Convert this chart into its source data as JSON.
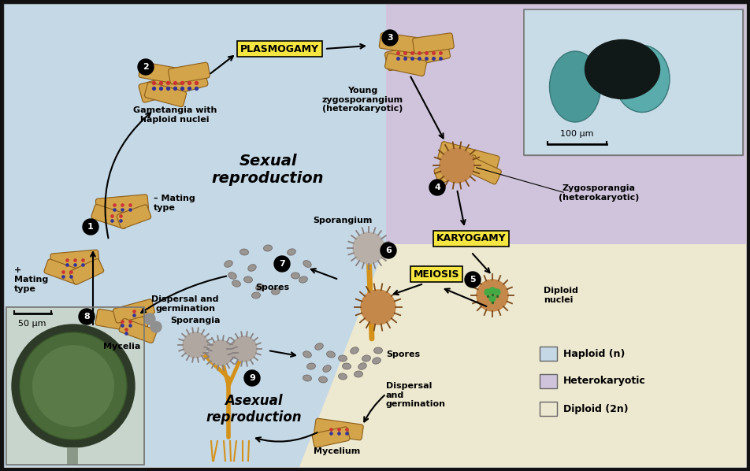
{
  "bg_haploid": "#c5d8e5",
  "bg_heterokaryotic": "#cfc4dc",
  "bg_diploid": "#ede8d0",
  "border_color": "#222222",
  "highlight_yellow": "#f5e642",
  "figsize": [
    9.52,
    5.98
  ],
  "dpi": 100,
  "labels": {
    "plasmogamy": "PLASMOGAMY",
    "karyogamy": "KARYOGAMY",
    "meiosis": "MEIOSIS",
    "sexual_reproduction": "Sexual\nreproduction",
    "asexual_reproduction": "Asexual\nreproduction",
    "gametangia": "Gametangia with\nhaploid nuclei",
    "young_zygo": "Young\nzygosporangium\n(heterokaryotic)",
    "zygosporangia": "Zygosporangia\n(heterokaryotic)",
    "diploid_nuclei": "Diploid\nnuclei",
    "sporangium": "Sporangium",
    "spores1": "Spores",
    "spores2": "Spores",
    "dispersal1": "Dispersal and\ngermination",
    "dispersal2": "Dispersal\nand\ngermination",
    "sporangia": "Sporangia",
    "mycelia": "Mycelia",
    "mycelium": "Mycelium",
    "plus_mating": "+\nMating\ntype",
    "minus_mating": "– Mating\ntype",
    "scale_100": "100 μm",
    "scale_50": "50 μm",
    "legend_haploid": "Haploid (n)",
    "legend_hetero": "Heterokaryotic",
    "legend_diploid": "Diploid (2n)"
  }
}
